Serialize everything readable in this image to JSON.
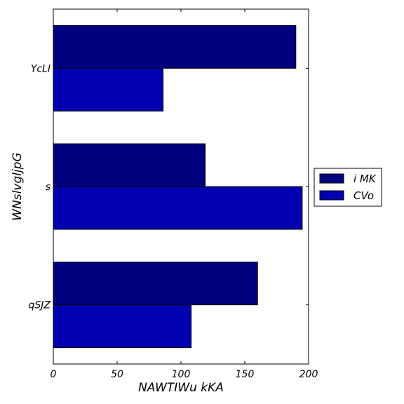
{
  "chart_data": {
    "type": "bar",
    "orientation": "horizontal",
    "categories": [
      "qSJZ",
      "s",
      "YcLI"
    ],
    "series": [
      {
        "name": "i MK",
        "values": [
          160,
          119,
          190
        ],
        "color": "#00007f"
      },
      {
        "name": "CVo",
        "values": [
          108,
          195,
          86
        ],
        "color": "#0000b0"
      }
    ],
    "xlabel": "NAWTIWu kKA",
    "ylabel": "WNslvgljpG",
    "xlim": [
      0,
      200
    ],
    "xticks": [
      0,
      50,
      100,
      150,
      200
    ],
    "xtick_labels": [
      "0",
      "50",
      "100",
      "150",
      "200"
    ],
    "grid": false,
    "legend_position": "right, outside"
  }
}
